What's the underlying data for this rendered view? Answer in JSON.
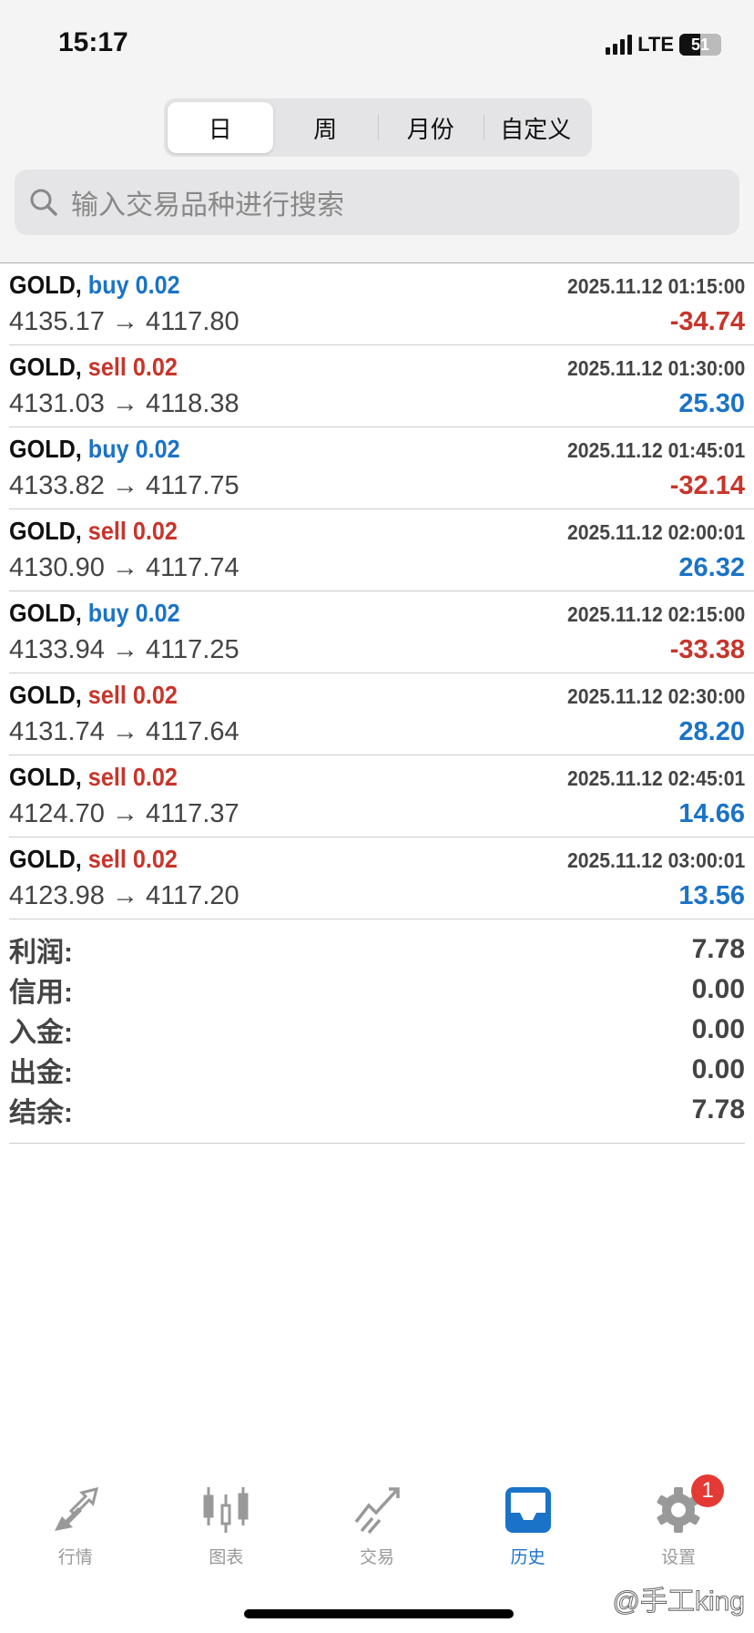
{
  "status_bar": {
    "time": "15:17",
    "network": "LTE",
    "battery": "51",
    "battery_level": 51
  },
  "segments": [
    {
      "label": "日",
      "active": true
    },
    {
      "label": "周"
    },
    {
      "label": "月份"
    },
    {
      "label": "自定义"
    }
  ],
  "search": {
    "placeholder": "输入交易品种进行搜索"
  },
  "trades": [
    {
      "symbol": "GOLD,",
      "side": "buy",
      "volume": "0.02",
      "time": "2025.11.12 01:15:00",
      "open": "4135.17",
      "close": "4117.80",
      "profit": "-34.74"
    },
    {
      "symbol": "GOLD,",
      "side": "sell",
      "volume": "0.02",
      "time": "2025.11.12 01:30:00",
      "open": "4131.03",
      "close": "4118.38",
      "profit": "25.30"
    },
    {
      "symbol": "GOLD,",
      "side": "buy",
      "volume": "0.02",
      "time": "2025.11.12 01:45:01",
      "open": "4133.82",
      "close": "4117.75",
      "profit": "-32.14"
    },
    {
      "symbol": "GOLD,",
      "side": "sell",
      "volume": "0.02",
      "time": "2025.11.12 02:00:01",
      "open": "4130.90",
      "close": "4117.74",
      "profit": "26.32"
    },
    {
      "symbol": "GOLD,",
      "side": "buy",
      "volume": "0.02",
      "time": "2025.11.12 02:15:00",
      "open": "4133.94",
      "close": "4117.25",
      "profit": "-33.38"
    },
    {
      "symbol": "GOLD,",
      "side": "sell",
      "volume": "0.02",
      "time": "2025.11.12 02:30:00",
      "open": "4131.74",
      "close": "4117.64",
      "profit": "28.20"
    },
    {
      "symbol": "GOLD,",
      "side": "sell",
      "volume": "0.02",
      "time": "2025.11.12 02:45:01",
      "open": "4124.70",
      "close": "4117.37",
      "profit": "14.66"
    },
    {
      "symbol": "GOLD,",
      "side": "sell",
      "volume": "0.02",
      "time": "2025.11.12 03:00:01",
      "open": "4123.98",
      "close": "4117.20",
      "profit": "13.56"
    }
  ],
  "summary": [
    {
      "label": "利润:",
      "value": "7.78"
    },
    {
      "label": "信用:",
      "value": "0.00"
    },
    {
      "label": "入金:",
      "value": "0.00"
    },
    {
      "label": "出金:",
      "value": "0.00"
    },
    {
      "label": "结余:",
      "value": "7.78"
    }
  ],
  "tabbar": [
    {
      "label": "行情",
      "icon": "quotes-arrows-icon"
    },
    {
      "label": "图表",
      "icon": "candlestick-chart-icon"
    },
    {
      "label": "交易",
      "icon": "trade-trend-icon"
    },
    {
      "label": "历史",
      "icon": "history-inbox-icon",
      "active": true
    },
    {
      "label": "设置",
      "icon": "gear-icon",
      "badge": "1"
    }
  ],
  "watermark": "@手工king",
  "colors": {
    "buy": "#1a73c8",
    "sell": "#c8342a",
    "active_tab": "#1a73c8",
    "badge": "#e53935"
  }
}
